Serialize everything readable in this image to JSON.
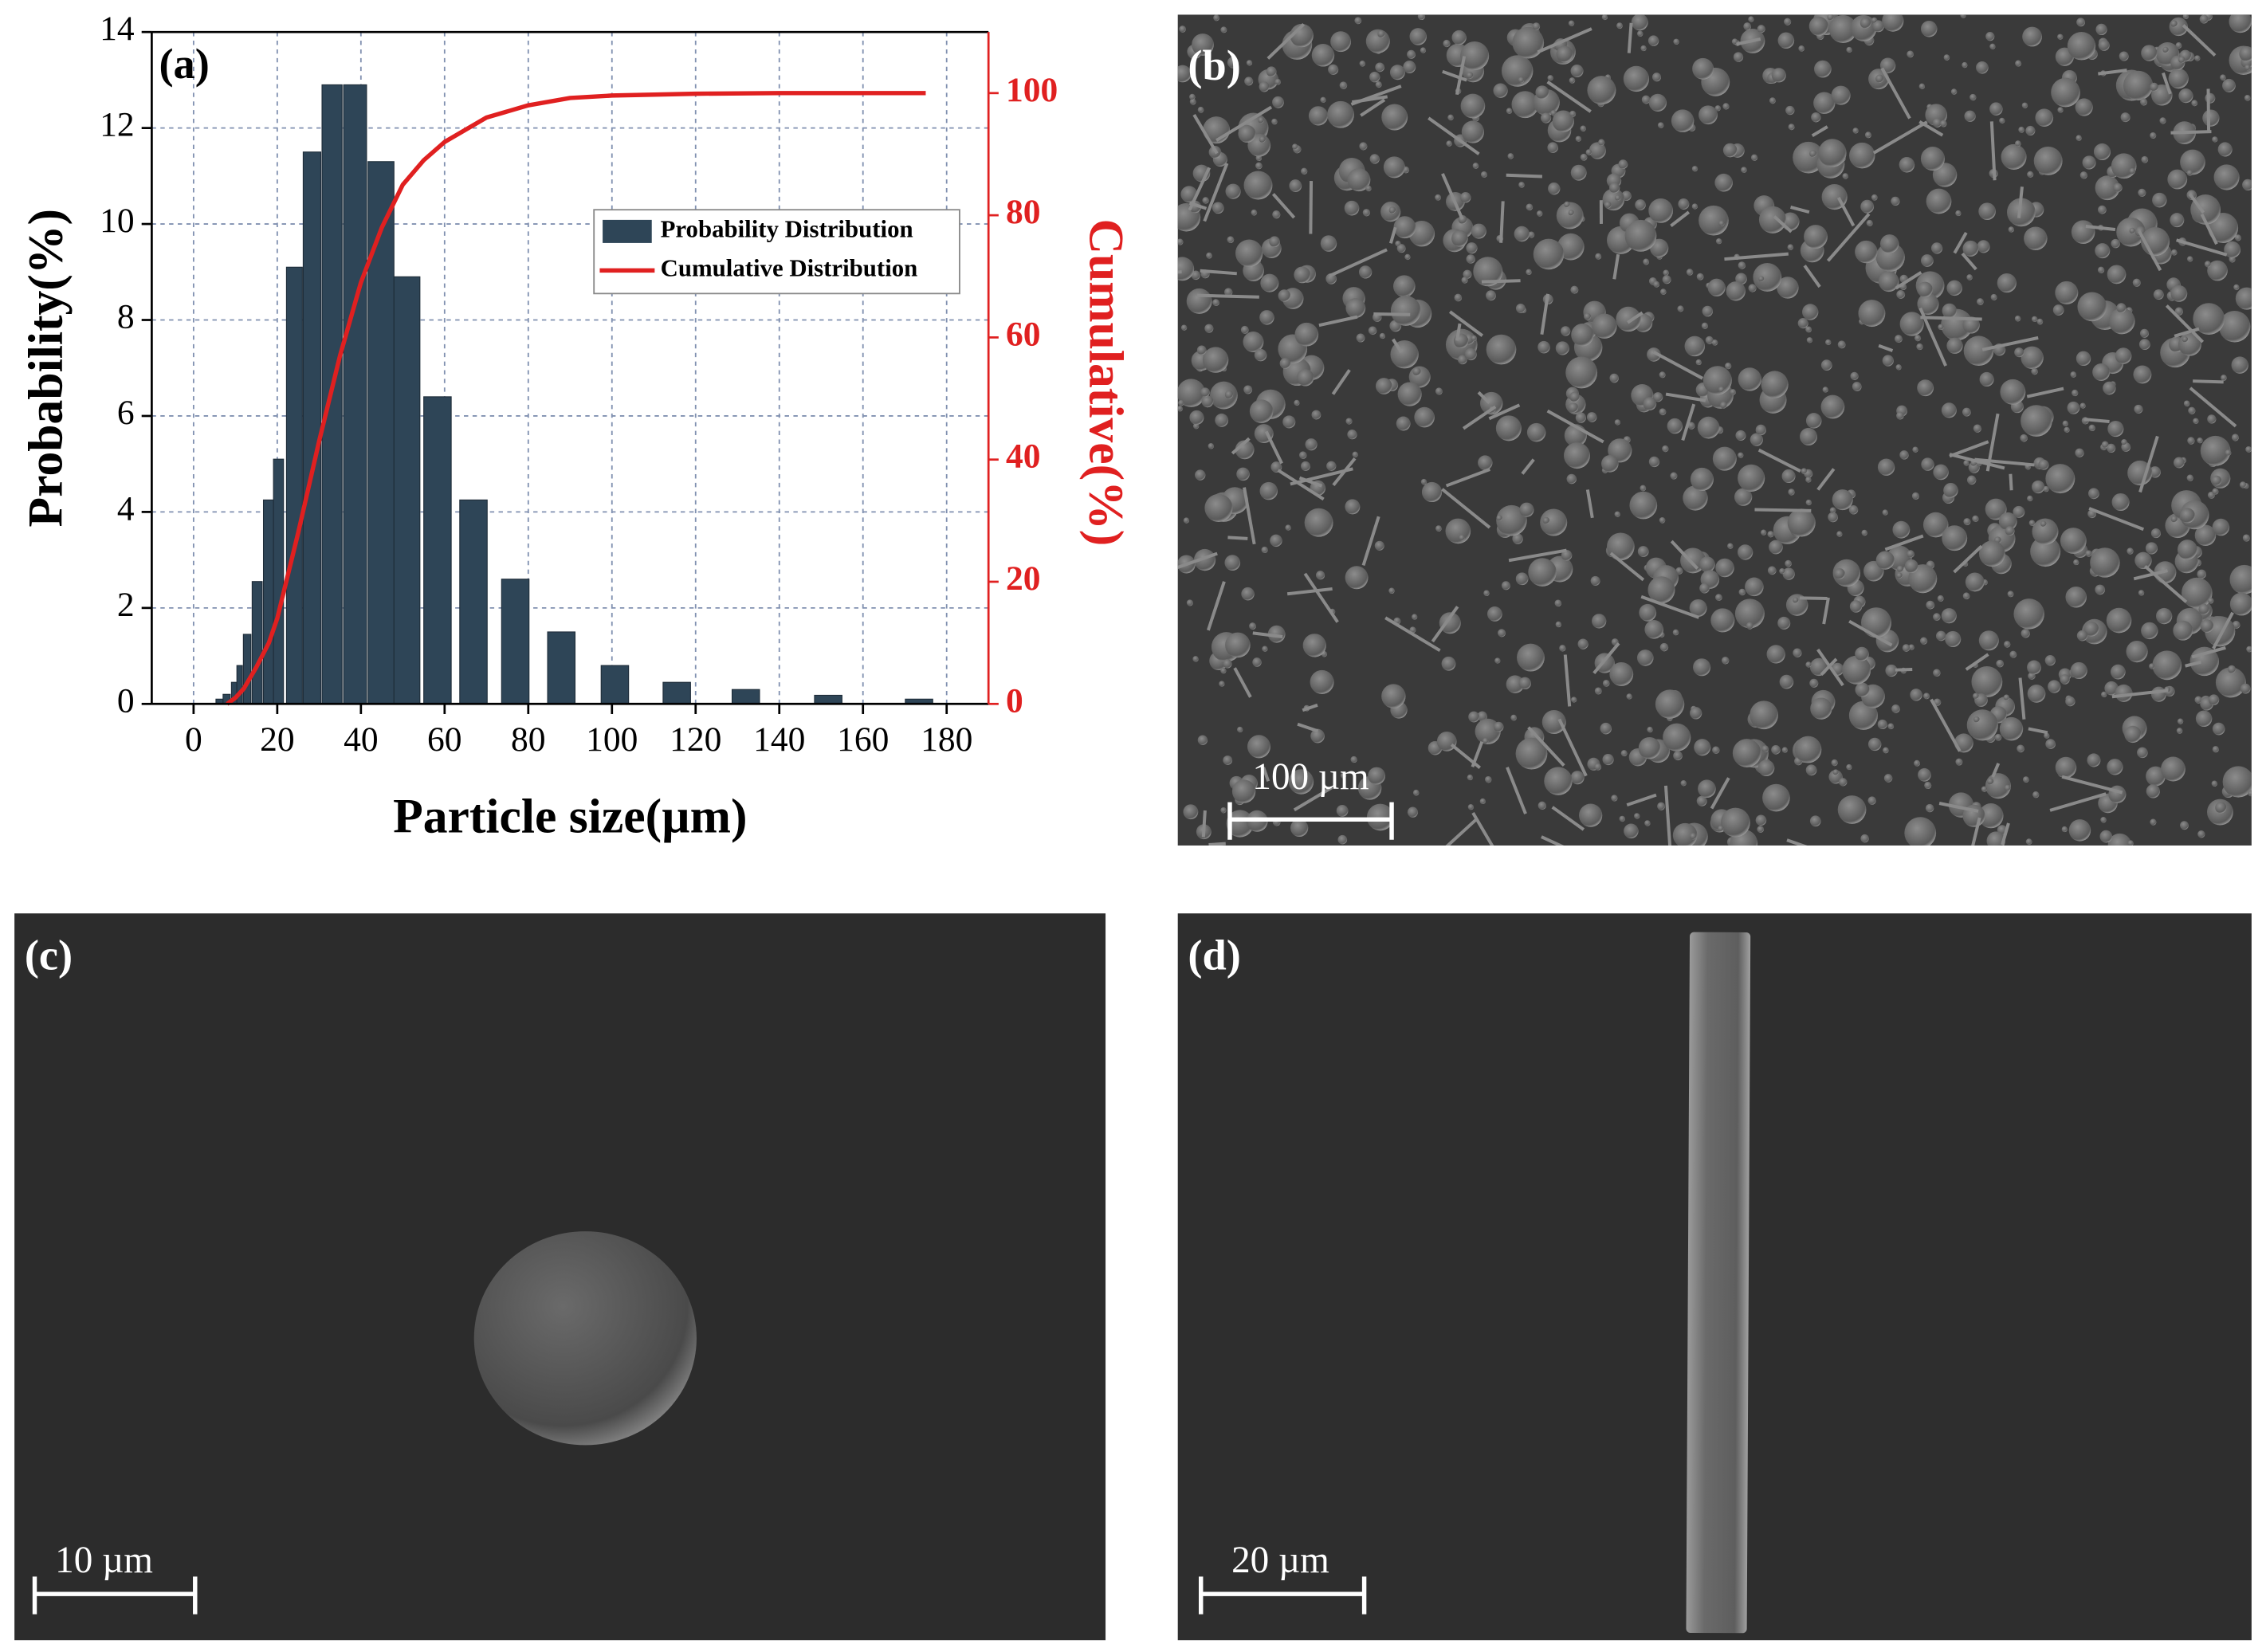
{
  "chart_data": {
    "type": "bar",
    "panel_label": "(a)",
    "x_label": "Particle size(µm)",
    "y_label": "Probability(%)",
    "y2_label": "Cumulative(%)",
    "xlim": [
      -10,
      190
    ],
    "xticks": [
      0,
      20,
      40,
      60,
      80,
      100,
      120,
      140,
      160,
      180
    ],
    "ylim": [
      0,
      14
    ],
    "yticks": [
      0,
      2,
      4,
      6,
      8,
      10,
      12,
      14
    ],
    "y2lim": [
      0,
      110
    ],
    "y2ticks": [
      0,
      20,
      40,
      60,
      80,
      100
    ],
    "grid": true,
    "legend": "upper right",
    "series": [
      {
        "name": "Probability Distribution",
        "type": "bar",
        "color": "#2e4557",
        "x": [
          6.2,
          7.9,
          9.7,
          11,
          12.8,
          15.2,
          17.9,
          20.3,
          24.1,
          28.3,
          33.1,
          38.6,
          44.8,
          51,
          58.3,
          66.9,
          76.9,
          87.9,
          100.7,
          115.5,
          132,
          151.7,
          173.4
        ],
        "values": [
          0.1,
          0.2,
          0.45,
          0.8,
          1.45,
          2.55,
          4.25,
          5.1,
          9.1,
          11.5,
          12.9,
          12.9,
          11.3,
          8.9,
          6.4,
          4.25,
          2.6,
          1.5,
          0.8,
          0.45,
          0.3,
          0.18,
          0.1
        ]
      },
      {
        "name": "Cumulative Distribution",
        "type": "line",
        "axis": "y2",
        "color": "#e02020",
        "x": [
          8,
          10,
          12,
          15,
          18,
          20,
          25,
          30,
          35,
          40,
          45,
          50,
          55,
          60,
          70,
          80,
          90,
          100,
          120,
          140,
          160,
          175
        ],
        "values": [
          0,
          1,
          2.5,
          6,
          10,
          14,
          28,
          43,
          57,
          69,
          78,
          85,
          89,
          92,
          96,
          98,
          99.2,
          99.6,
          99.9,
          100,
          100,
          100
        ]
      }
    ]
  },
  "panels": [
    {
      "label": "(b)",
      "scale_bar": "100 µm"
    },
    {
      "label": "(c)",
      "scale_bar": "10 µm"
    },
    {
      "label": "(d)",
      "scale_bar": "20 µm"
    }
  ]
}
